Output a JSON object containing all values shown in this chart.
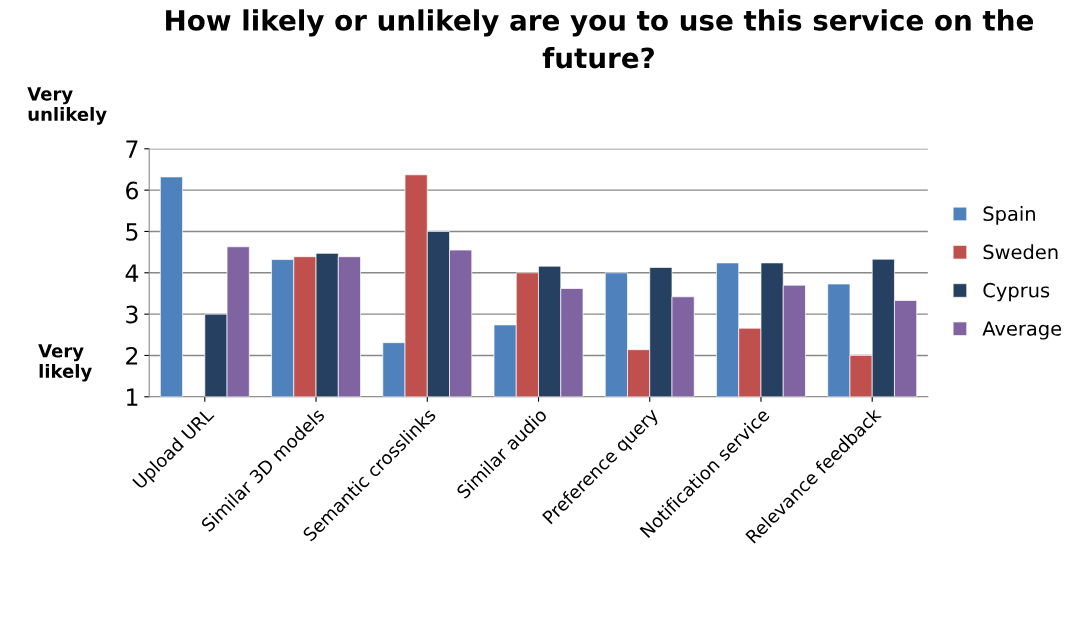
{
  "chart_data": {
    "type": "bar",
    "title": "How likely or unlikely are you to use this service on the future?",
    "categories": [
      "Upload URL",
      "Similar 3D models",
      "Semantic crosslinks",
      "Similar audio",
      "Preference query",
      "Notification service",
      "Relevance feedback"
    ],
    "series": [
      {
        "name": "Spain",
        "color": "#4f81bd",
        "values": [
          6.32,
          4.32,
          2.31,
          2.74,
          4.0,
          4.24,
          3.73
        ]
      },
      {
        "name": "Sweden",
        "color": "#c0504d",
        "values": [
          null,
          4.39,
          6.37,
          4.0,
          2.14,
          2.66,
          2.0
        ]
      },
      {
        "name": "Cyprus",
        "color": "#254061",
        "values": [
          3.0,
          4.47,
          5.0,
          4.16,
          4.13,
          4.24,
          4.33
        ]
      },
      {
        "name": "Average",
        "color": "#8064a2",
        "values": [
          4.63,
          4.39,
          4.55,
          3.62,
          3.42,
          3.7,
          3.33
        ]
      }
    ],
    "ylim": [
      1,
      7
    ],
    "yticks": [
      1,
      2,
      3,
      4,
      5,
      6,
      7
    ],
    "grid": "y",
    "legend": "right",
    "annotations": [
      "Very unlikely",
      "Very likely"
    ]
  }
}
